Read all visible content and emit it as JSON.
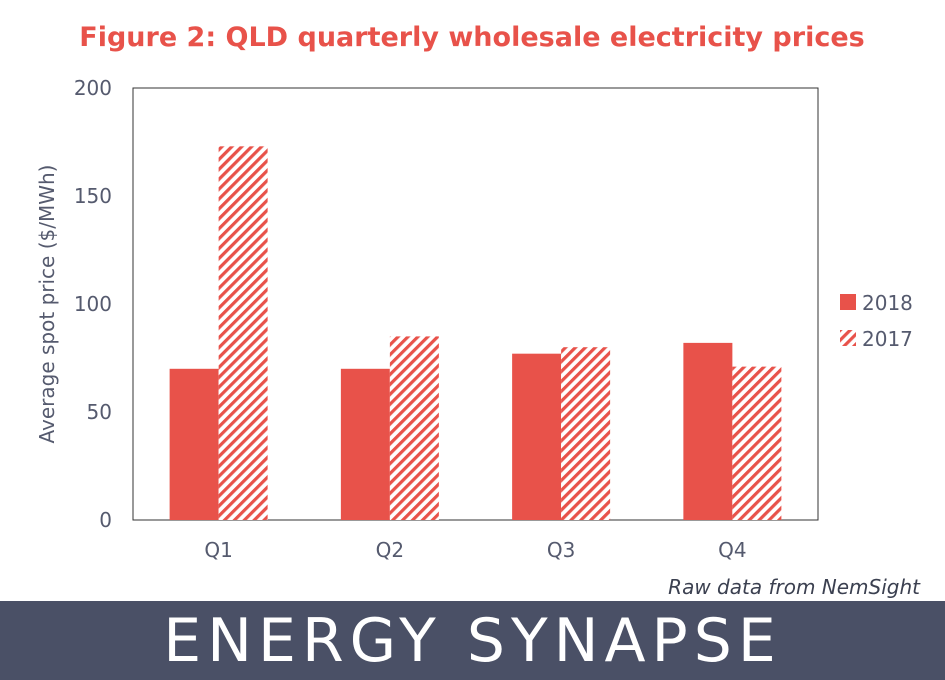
{
  "colors": {
    "accent": "#e8524a",
    "text": "#555a6e",
    "banner": "#4a5066"
  },
  "banner": {
    "logo_text": "ENERGY SYNAPSE"
  },
  "chart_data": {
    "type": "bar",
    "title": "Figure 2: QLD quarterly wholesale electricity prices",
    "xlabel": "",
    "ylabel": "Average spot price ($/MWh)",
    "ylim": [
      0,
      200
    ],
    "yticks": [
      0,
      50,
      100,
      150,
      200
    ],
    "grid": false,
    "legend_position": "right",
    "categories": [
      "Q1",
      "Q2",
      "Q3",
      "Q4"
    ],
    "series": [
      {
        "name": "2018",
        "values": [
          70,
          70,
          77,
          82
        ],
        "fill": "solid",
        "color": "#e8524a"
      },
      {
        "name": "2017",
        "values": [
          173,
          85,
          80,
          71
        ],
        "fill": "hatched",
        "color": "#e8524a"
      }
    ],
    "annotation": "Raw data from NemSight"
  }
}
